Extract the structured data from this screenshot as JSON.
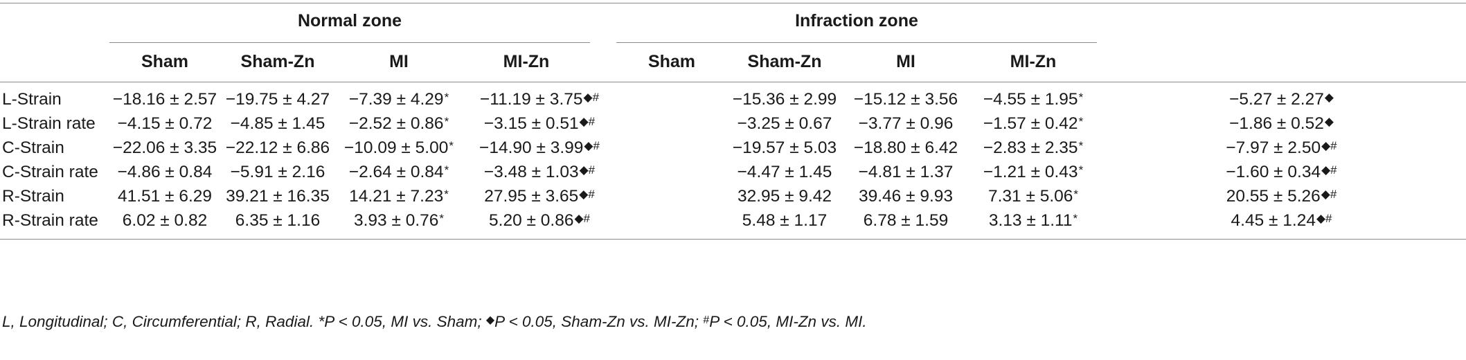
{
  "groups": {
    "normal": "Normal zone",
    "infraction": "Infraction zone"
  },
  "columns": [
    "Sham",
    "Sham-Zn",
    "MI",
    "MI-Zn",
    "Sham",
    "Sham-Zn",
    "MI",
    "MI-Zn"
  ],
  "rows": [
    {
      "label": "L-Strain",
      "cells": [
        {
          "v": "−18.16 ± 2.57",
          "m": ""
        },
        {
          "v": "−19.75 ± 4.27",
          "m": ""
        },
        {
          "v": "−7.39 ± 4.29",
          "m": "*"
        },
        {
          "v": "−11.19 ± 3.75",
          "m": "◆#"
        },
        {
          "v": "−15.36 ± 2.99",
          "m": ""
        },
        {
          "v": "−15.12 ± 3.56",
          "m": ""
        },
        {
          "v": "−4.55 ± 1.95",
          "m": "*"
        },
        {
          "v": "−5.27 ± 2.27",
          "m": "◆"
        }
      ]
    },
    {
      "label": "L-Strain rate",
      "cells": [
        {
          "v": "−4.15 ± 0.72",
          "m": ""
        },
        {
          "v": "−4.85 ± 1.45",
          "m": ""
        },
        {
          "v": "−2.52 ± 0.86",
          "m": "*"
        },
        {
          "v": "−3.15 ± 0.51",
          "m": "◆#"
        },
        {
          "v": "−3.25 ± 0.67",
          "m": ""
        },
        {
          "v": "−3.77 ± 0.96",
          "m": ""
        },
        {
          "v": "−1.57 ± 0.42",
          "m": "*"
        },
        {
          "v": "−1.86 ± 0.52",
          "m": "◆"
        }
      ]
    },
    {
      "label": "C-Strain",
      "cells": [
        {
          "v": "−22.06 ± 3.35",
          "m": ""
        },
        {
          "v": "−22.12 ± 6.86",
          "m": ""
        },
        {
          "v": "−10.09 ± 5.00",
          "m": "*"
        },
        {
          "v": "−14.90 ± 3.99",
          "m": "◆#"
        },
        {
          "v": "−19.57 ± 5.03",
          "m": ""
        },
        {
          "v": "−18.80 ± 6.42",
          "m": ""
        },
        {
          "v": "−2.83 ± 2.35",
          "m": "*"
        },
        {
          "v": "−7.97 ± 2.50",
          "m": "◆#"
        }
      ]
    },
    {
      "label": "C-Strain rate",
      "cells": [
        {
          "v": "−4.86 ± 0.84",
          "m": ""
        },
        {
          "v": "−5.91 ± 2.16",
          "m": ""
        },
        {
          "v": "−2.64 ± 0.84",
          "m": "*"
        },
        {
          "v": "−3.48 ± 1.03",
          "m": "◆#"
        },
        {
          "v": "−4.47 ± 1.45",
          "m": ""
        },
        {
          "v": "−4.81 ± 1.37",
          "m": ""
        },
        {
          "v": "−1.21 ± 0.43",
          "m": "*"
        },
        {
          "v": "−1.60 ± 0.34",
          "m": "◆#"
        }
      ]
    },
    {
      "label": "R-Strain",
      "cells": [
        {
          "v": "41.51 ± 6.29",
          "m": ""
        },
        {
          "v": "39.21 ± 16.35",
          "m": ""
        },
        {
          "v": "14.21 ± 7.23",
          "m": "*"
        },
        {
          "v": "27.95 ± 3.65",
          "m": "◆#"
        },
        {
          "v": "32.95 ± 9.42",
          "m": ""
        },
        {
          "v": "39.46 ± 9.93",
          "m": ""
        },
        {
          "v": "7.31 ± 5.06",
          "m": "*"
        },
        {
          "v": "20.55 ± 5.26",
          "m": "◆#"
        }
      ]
    },
    {
      "label": "R-Strain rate",
      "cells": [
        {
          "v": "6.02 ± 0.82",
          "m": ""
        },
        {
          "v": "6.35 ± 1.16",
          "m": ""
        },
        {
          "v": "3.93 ± 0.76",
          "m": "*"
        },
        {
          "v": "5.20 ± 0.86",
          "m": "◆#"
        },
        {
          "v": "5.48 ± 1.17",
          "m": ""
        },
        {
          "v": "6.78 ± 1.59",
          "m": ""
        },
        {
          "v": "3.13 ± 1.11",
          "m": "*"
        },
        {
          "v": "4.45 ± 1.24",
          "m": "◆#"
        }
      ]
    }
  ],
  "footnote": {
    "part1": "L, Longitudinal; C, Circumferential; R, Radial. *P < 0.05, MI vs. Sham; ",
    "sym1": "◆",
    "part2": "P < 0.05, Sham-Zn vs. MI-Zn; ",
    "sym2": "#",
    "part3": "P < 0.05, MI-Zn vs. MI."
  }
}
